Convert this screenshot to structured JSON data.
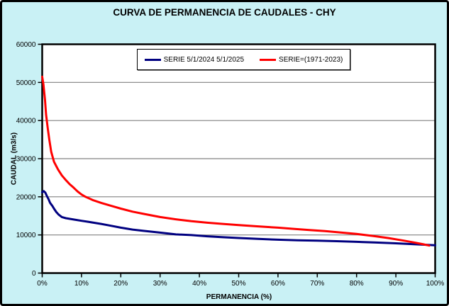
{
  "title": "CURVA DE PERMANENCIA DE CAUDALES - CHY",
  "colors": {
    "background": "#C9F1F5",
    "plot_background": "#FFFFFF",
    "grid": "#808080",
    "axis": "#000000",
    "series_current": "#000080",
    "series_historical": "#FF0000"
  },
  "legend": {
    "items": [
      {
        "label": "SERIE 5/1/2024 5/1/2025",
        "color": "#000080"
      },
      {
        "label": "SERIE=(1971-2023)",
        "color": "#FF0000"
      }
    ]
  },
  "chart_data": {
    "type": "line",
    "title": "CURVA DE PERMANENCIA DE CAUDALES - CHY",
    "xlabel": "PERMANENCIA (%)",
    "ylabel": "CAUDAL (m3/s)",
    "xlim": [
      0,
      100
    ],
    "ylim": [
      0,
      60000
    ],
    "xticks": [
      0,
      10,
      20,
      30,
      40,
      50,
      60,
      70,
      80,
      90,
      100
    ],
    "xtick_labels": [
      "0%",
      "10%",
      "20%",
      "30%",
      "40%",
      "50%",
      "60%",
      "70%",
      "80%",
      "90%",
      "100%"
    ],
    "yticks": [
      0,
      10000,
      20000,
      30000,
      40000,
      50000,
      60000
    ],
    "ytick_labels": [
      "0",
      "10000",
      "20000",
      "30000",
      "40000",
      "50000",
      "60000"
    ],
    "ygrid": [
      10000,
      20000,
      30000,
      40000,
      50000
    ],
    "grid": "horizontal",
    "legend_position": "top-center",
    "series": [
      {
        "name": "SERIE 5/1/2024 5/1/2025",
        "color": "#000080",
        "points": [
          [
            0,
            21200
          ],
          [
            0.4,
            21500
          ],
          [
            0.8,
            21100
          ],
          [
            1.2,
            20200
          ],
          [
            1.6,
            19400
          ],
          [
            2,
            18400
          ],
          [
            2.6,
            17600
          ],
          [
            3,
            16900
          ],
          [
            3.6,
            16000
          ],
          [
            4.2,
            15300
          ],
          [
            5,
            14700
          ],
          [
            6,
            14400
          ],
          [
            8,
            14050
          ],
          [
            10,
            13700
          ],
          [
            12,
            13400
          ],
          [
            15,
            12900
          ],
          [
            17,
            12500
          ],
          [
            20,
            11900
          ],
          [
            23,
            11400
          ],
          [
            26,
            11050
          ],
          [
            30,
            10600
          ],
          [
            34,
            10150
          ],
          [
            38,
            9950
          ],
          [
            42,
            9650
          ],
          [
            46,
            9400
          ],
          [
            50,
            9200
          ],
          [
            55,
            8950
          ],
          [
            60,
            8750
          ],
          [
            65,
            8600
          ],
          [
            70,
            8500
          ],
          [
            75,
            8350
          ],
          [
            80,
            8200
          ],
          [
            85,
            8000
          ],
          [
            90,
            7800
          ],
          [
            95,
            7550
          ],
          [
            100,
            7300
          ]
        ]
      },
      {
        "name": "SERIE=(1971-2023)",
        "color": "#FF0000",
        "points": [
          [
            0,
            51500
          ],
          [
            0.3,
            49500
          ],
          [
            0.7,
            45500
          ],
          [
            1,
            41500
          ],
          [
            1.4,
            38000
          ],
          [
            1.8,
            35000
          ],
          [
            2.3,
            31800
          ],
          [
            3,
            29200
          ],
          [
            4,
            27200
          ],
          [
            5,
            25600
          ],
          [
            6,
            24400
          ],
          [
            7,
            23300
          ],
          [
            8,
            22400
          ],
          [
            9,
            21400
          ],
          [
            10,
            20600
          ],
          [
            11,
            20000
          ],
          [
            13,
            19100
          ],
          [
            15,
            18400
          ],
          [
            17,
            17800
          ],
          [
            20,
            16900
          ],
          [
            23,
            16100
          ],
          [
            26,
            15500
          ],
          [
            30,
            14700
          ],
          [
            34,
            14100
          ],
          [
            38,
            13600
          ],
          [
            42,
            13200
          ],
          [
            46,
            12900
          ],
          [
            50,
            12600
          ],
          [
            55,
            12250
          ],
          [
            60,
            11900
          ],
          [
            64,
            11600
          ],
          [
            68,
            11300
          ],
          [
            72,
            11000
          ],
          [
            76,
            10650
          ],
          [
            80,
            10250
          ],
          [
            84,
            9750
          ],
          [
            88,
            9200
          ],
          [
            92,
            8500
          ],
          [
            95,
            7950
          ],
          [
            97,
            7550
          ],
          [
            98.5,
            7200
          ]
        ]
      }
    ]
  }
}
